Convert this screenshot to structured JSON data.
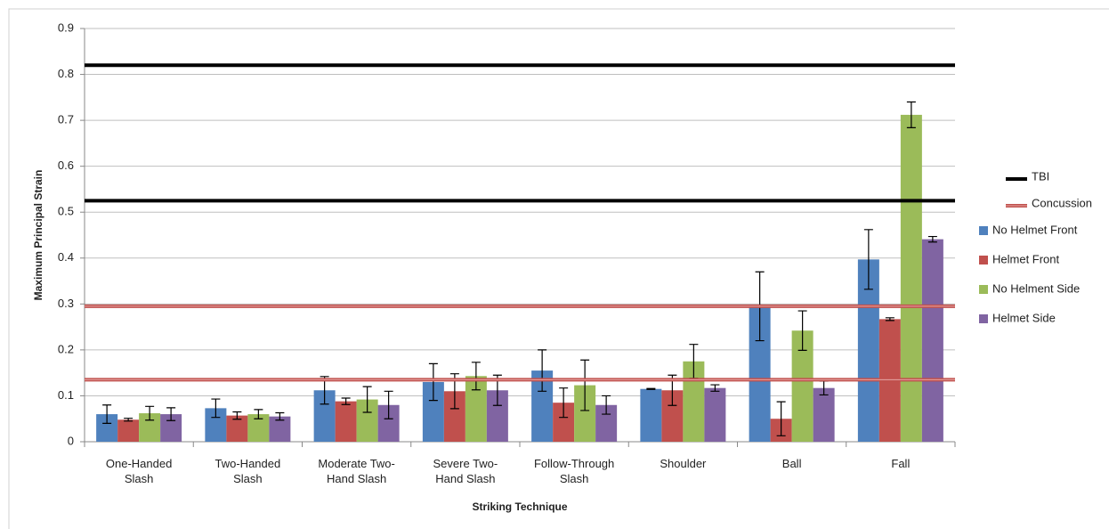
{
  "chart_data": {
    "type": "bar",
    "y_label": "Maximum Principal Strain",
    "x_label": "Striking Technique",
    "categories": [
      "One-Handed Slash",
      "Two-Handed Slash",
      "Moderate Two-Hand Slash",
      "Severe Two-Hand Slash",
      "Follow-Through Slash",
      "Shoulder",
      "Ball",
      "Fall"
    ],
    "series": [
      {
        "name": "No Helmet Front",
        "color": "#4f81bd",
        "values": [
          0.06,
          0.073,
          0.112,
          0.13,
          0.155,
          0.115,
          0.295,
          0.397
        ],
        "errors": [
          0.02,
          0.02,
          0.03,
          0.04,
          0.045,
          0.001,
          0.075,
          0.065
        ]
      },
      {
        "name": "Helmet Front",
        "color": "#c0504d",
        "values": [
          0.048,
          0.057,
          0.088,
          0.11,
          0.085,
          0.112,
          0.05,
          0.267
        ],
        "errors": [
          0.003,
          0.008,
          0.007,
          0.038,
          0.032,
          0.033,
          0.037,
          0.003
        ]
      },
      {
        "name": "No Helment Side",
        "color": "#9bbb59",
        "values": [
          0.062,
          0.06,
          0.092,
          0.143,
          0.123,
          0.175,
          0.242,
          0.712
        ],
        "errors": [
          0.015,
          0.01,
          0.028,
          0.03,
          0.055,
          0.037,
          0.043,
          0.028
        ]
      },
      {
        "name": "Helmet Side",
        "color": "#8064a2",
        "values": [
          0.06,
          0.055,
          0.08,
          0.112,
          0.08,
          0.117,
          0.117,
          0.441
        ],
        "errors": [
          0.014,
          0.008,
          0.03,
          0.033,
          0.02,
          0.007,
          0.015,
          0.006
        ]
      }
    ],
    "reference_lines": [
      {
        "name": "TBI",
        "color": "#000000",
        "values": [
          0.82,
          0.525
        ]
      },
      {
        "name": "Concussion",
        "color": "#c0504d",
        "values": [
          0.295,
          0.135
        ]
      }
    ],
    "ylim": [
      0,
      0.9
    ],
    "yticks": [
      0,
      0.1,
      0.2,
      0.3,
      0.4,
      0.5,
      0.6,
      0.7,
      0.8,
      0.9
    ],
    "grid": true
  }
}
